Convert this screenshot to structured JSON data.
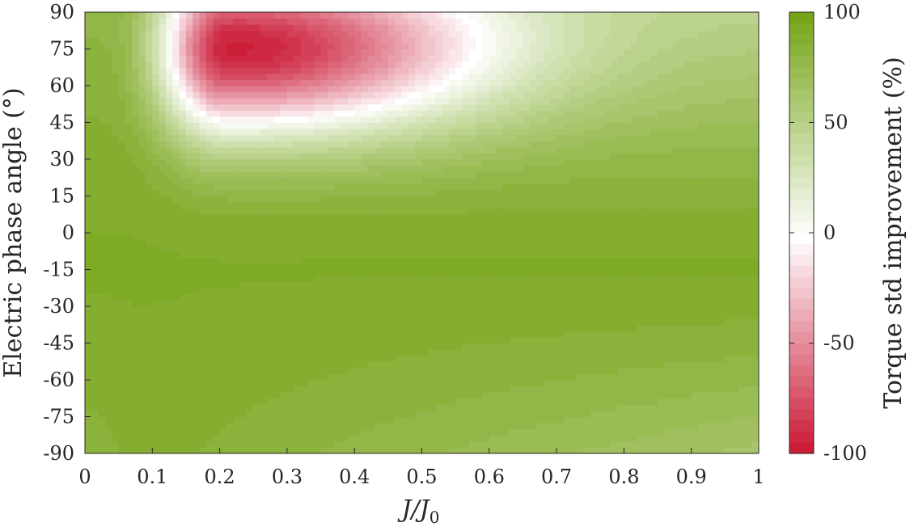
{
  "chart_data": {
    "type": "heatmap",
    "title": "",
    "xlabel": "J/J",
    "xlabel_sub": "0",
    "ylabel": "Electric phase angle (°)",
    "colorbar_label": "Torque std improvement (%)",
    "xlim": [
      0,
      1
    ],
    "ylim": [
      -90,
      90
    ],
    "clim": [
      -100,
      100
    ],
    "x_ticks": [
      "0",
      "0.1",
      "0.2",
      "0.3",
      "0.4",
      "0.5",
      "0.6",
      "0.7",
      "0.8",
      "0.9",
      "1"
    ],
    "y_ticks": [
      "90",
      "75",
      "60",
      "45",
      "30",
      "15",
      "0",
      "-15",
      "-30",
      "-45",
      "-60",
      "-75",
      "-90"
    ],
    "colorbar_ticks": [
      "100",
      "50",
      "0",
      "-50",
      "-100"
    ],
    "colormap": {
      "negative": "#c8102e",
      "zero": "#ffffff",
      "positive": "#77a51a"
    },
    "grid": false,
    "features": {
      "max_improvement": {
        "x": 0.05,
        "y": -13,
        "value": 92
      },
      "worst_region": {
        "x": 0.21,
        "y": 75,
        "value": -85
      },
      "zero_contour_tip": {
        "x": 0.95,
        "y": 75
      }
    }
  }
}
